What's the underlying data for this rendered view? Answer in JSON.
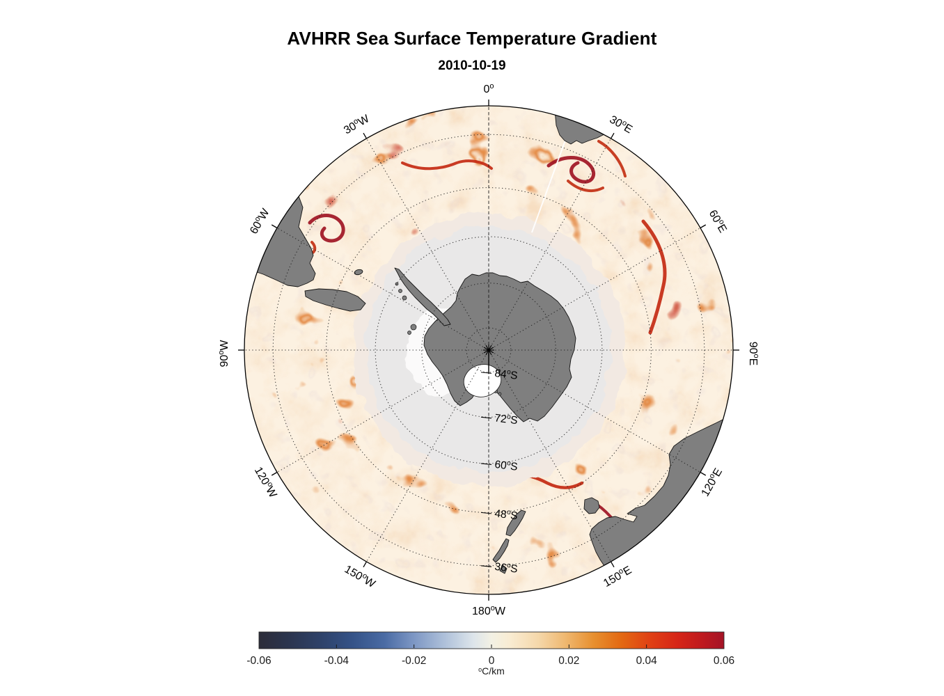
{
  "title": {
    "text": "AVHRR Sea Surface Temperature Gradient",
    "subtitle": "2010-10-19"
  },
  "map": {
    "lon_labels": [
      {
        "az": 0,
        "base": "0",
        "suffix": ""
      },
      {
        "az": 30,
        "base": "30",
        "suffix": "E"
      },
      {
        "az": 60,
        "base": "60",
        "suffix": "E"
      },
      {
        "az": 90,
        "base": "90",
        "suffix": "E"
      },
      {
        "az": 120,
        "base": "120",
        "suffix": "E"
      },
      {
        "az": 150,
        "base": "150",
        "suffix": "E"
      },
      {
        "az": 180,
        "base": "180",
        "suffix": "W"
      },
      {
        "az": 210,
        "base": "150",
        "suffix": "W"
      },
      {
        "az": 240,
        "base": "120",
        "suffix": "W"
      },
      {
        "az": 270,
        "base": "90",
        "suffix": "W"
      },
      {
        "az": 300,
        "base": "60",
        "suffix": "W"
      },
      {
        "az": 330,
        "base": "30",
        "suffix": "W"
      }
    ],
    "lat_labels": [
      {
        "base": "84",
        "suffix": "S",
        "lat": 84
      },
      {
        "base": "72",
        "suffix": "S",
        "lat": 72
      },
      {
        "base": "60",
        "suffix": "S",
        "lat": 60
      },
      {
        "base": "48",
        "suffix": "S",
        "lat": 48
      },
      {
        "base": "36",
        "suffix": "S",
        "lat": 36
      }
    ],
    "colors": {
      "ocean_base": "#fcf1e1",
      "haze": "#eebd8a",
      "filament_orange": "#dd6e1b",
      "filament_red": "#c3260e",
      "filament_maroon": "#8e1124",
      "speckle": "#d3c4d0",
      "ice_outer": "#f2e9e2",
      "ice": "#e9e8e8",
      "ice_white": "#fdfdfc",
      "land": "#7f7f7f",
      "coast": "#141414",
      "graticule": "#1b1b1b",
      "rim": "#000000",
      "label": "#000000"
    }
  },
  "colorbar": {
    "ticks": [
      "-0.06",
      "-0.04",
      "-0.02",
      "0",
      "0.02",
      "0.04",
      "0.06"
    ],
    "unit_base": "C/km",
    "stops": [
      [
        "0.00",
        "#2c2d39"
      ],
      [
        "0.06",
        "#2b344d"
      ],
      [
        "0.13",
        "#2e4168"
      ],
      [
        "0.20",
        "#345287"
      ],
      [
        "0.27",
        "#4a6ba4"
      ],
      [
        "0.33",
        "#7b95c3"
      ],
      [
        "0.40",
        "#afc1da"
      ],
      [
        "0.46",
        "#dce4ea"
      ],
      [
        "0.50",
        "#f3f1e4"
      ],
      [
        "0.54",
        "#f9ecd2"
      ],
      [
        "0.60",
        "#f5d8ab"
      ],
      [
        "0.66",
        "#efb76f"
      ],
      [
        "0.72",
        "#e78f2e"
      ],
      [
        "0.78",
        "#e36812"
      ],
      [
        "0.84",
        "#e04114"
      ],
      [
        "0.90",
        "#d62517"
      ],
      [
        "0.95",
        "#c01a1e"
      ],
      [
        "1.00",
        "#a41326"
      ]
    ]
  },
  "chart_data": {
    "type": "heatmap",
    "title": "AVHRR Sea Surface Temperature Gradient",
    "subtitle": "2010-10-19",
    "projection": "south-polar-stereographic",
    "longitude_ticks": [
      "0°",
      "30°E",
      "60°E",
      "90°E",
      "120°E",
      "150°E",
      "180°W",
      "150°W",
      "120°W",
      "90°W",
      "60°W",
      "30°W"
    ],
    "latitude_ticks": [
      "84°S",
      "72°S",
      "60°S",
      "48°S",
      "36°S"
    ],
    "colorbar": {
      "ticks": [
        -0.06,
        -0.04,
        -0.02,
        0,
        0.02,
        0.04,
        0.06
      ],
      "range": [
        -0.06,
        0.06
      ],
      "label": "°C/km"
    },
    "legend_position": "bottom",
    "grid": "dotted-polar-graticule"
  }
}
